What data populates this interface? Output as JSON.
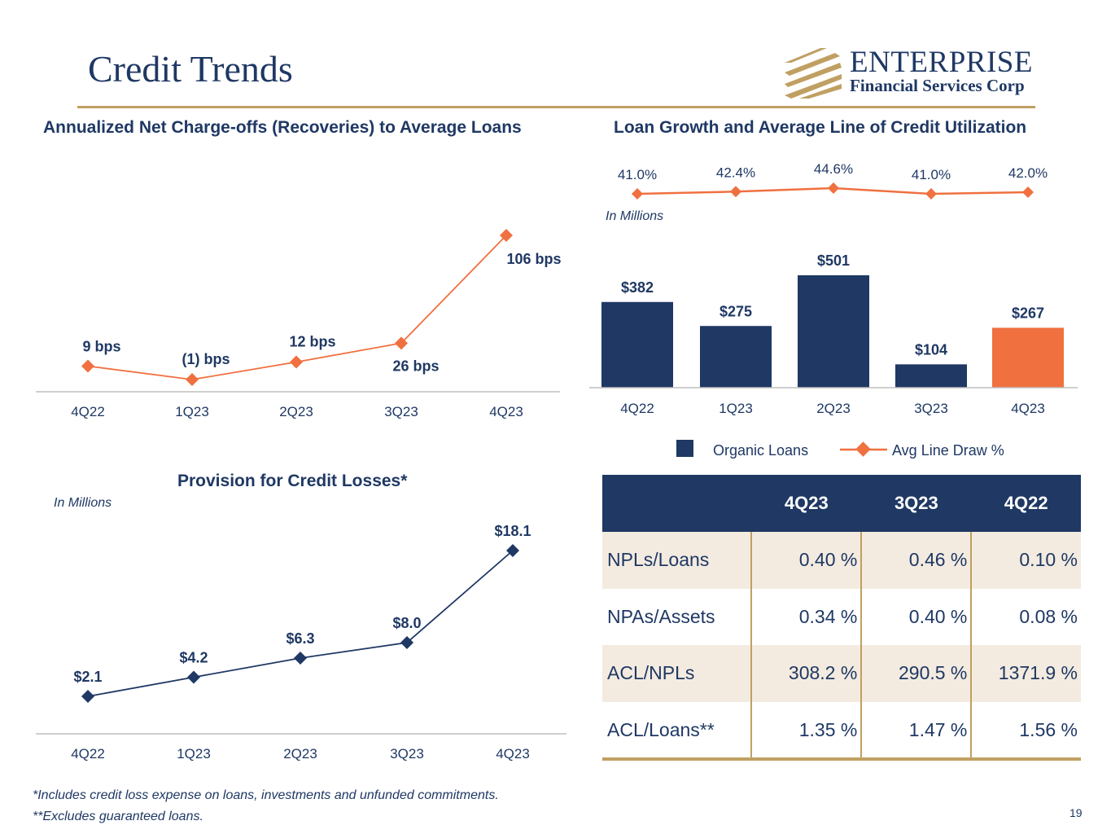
{
  "header": {
    "title": "Credit Trends"
  },
  "logo": {
    "name": "ENTERPRISE",
    "subtitle": "Financial Services Corp"
  },
  "colors": {
    "navy": "#1f3864",
    "orange": "#f07040",
    "gold": "#c0a062",
    "shade": "#f3ebe0"
  },
  "chart_data": [
    {
      "id": "nco",
      "type": "line",
      "title": "Annualized Net Charge-offs (Recoveries) to Average Loans",
      "categories": [
        "4Q22",
        "1Q23",
        "2Q23",
        "3Q23",
        "4Q23"
      ],
      "values": [
        9,
        -1,
        12,
        26,
        106
      ],
      "labels": [
        "9 bps",
        "(1) bps",
        "12 bps",
        "26 bps",
        "106 bps"
      ],
      "unit": "bps",
      "ylim": [
        -1,
        106
      ],
      "color": "#f07040"
    },
    {
      "id": "loan_growth",
      "type": "bar",
      "title": "Loan Growth and Average Line of Credit Utilization",
      "note": "In Millions",
      "categories": [
        "4Q22",
        "1Q23",
        "2Q23",
        "3Q23",
        "4Q23"
      ],
      "series": [
        {
          "name": "Organic Loans",
          "type": "bar",
          "values": [
            382,
            275,
            501,
            104,
            267
          ],
          "labels": [
            "$382",
            "$275",
            "$501",
            "$104",
            "$267"
          ],
          "color": "#1f3864",
          "highlight_color": "#f07040"
        },
        {
          "name": "Avg Line Draw %",
          "type": "line",
          "values": [
            41.0,
            42.4,
            44.6,
            41.0,
            42.0
          ],
          "labels": [
            "41.0%",
            "42.4%",
            "44.6%",
            "41.0%",
            "42.0%"
          ],
          "color": "#f07040"
        }
      ],
      "ylim": [
        0,
        501
      ],
      "legend": [
        "Organic Loans",
        "Avg Line Draw %"
      ]
    },
    {
      "id": "provision",
      "type": "line",
      "title": "Provision for Credit Losses*",
      "note": "In Millions",
      "categories": [
        "4Q22",
        "1Q23",
        "2Q23",
        "3Q23",
        "4Q23"
      ],
      "values": [
        2.1,
        4.2,
        6.3,
        8.0,
        18.1
      ],
      "labels": [
        "$2.1",
        "$4.2",
        "$6.3",
        "$8.0",
        "$18.1"
      ],
      "ylim": [
        2.1,
        18.1
      ],
      "color": "#1f3864"
    }
  ],
  "table": {
    "columns": [
      "",
      "4Q23",
      "3Q23",
      "4Q22"
    ],
    "rows": [
      {
        "label": "NPLs/Loans",
        "values": [
          "0.40 %",
          "0.46 %",
          "0.10 %"
        ]
      },
      {
        "label": "NPAs/Assets",
        "values": [
          "0.34 %",
          "0.40 %",
          "0.08 %"
        ]
      },
      {
        "label": "ACL/NPLs",
        "values": [
          "308.2 %",
          "290.5 %",
          "1371.9 %"
        ]
      },
      {
        "label": "ACL/Loans**",
        "values": [
          "1.35 %",
          "1.47 %",
          "1.56 %"
        ]
      }
    ]
  },
  "footnotes": [
    "*Includes credit loss expense on loans, investments and unfunded commitments.",
    "**Excludes guaranteed loans."
  ],
  "page_number": "19"
}
